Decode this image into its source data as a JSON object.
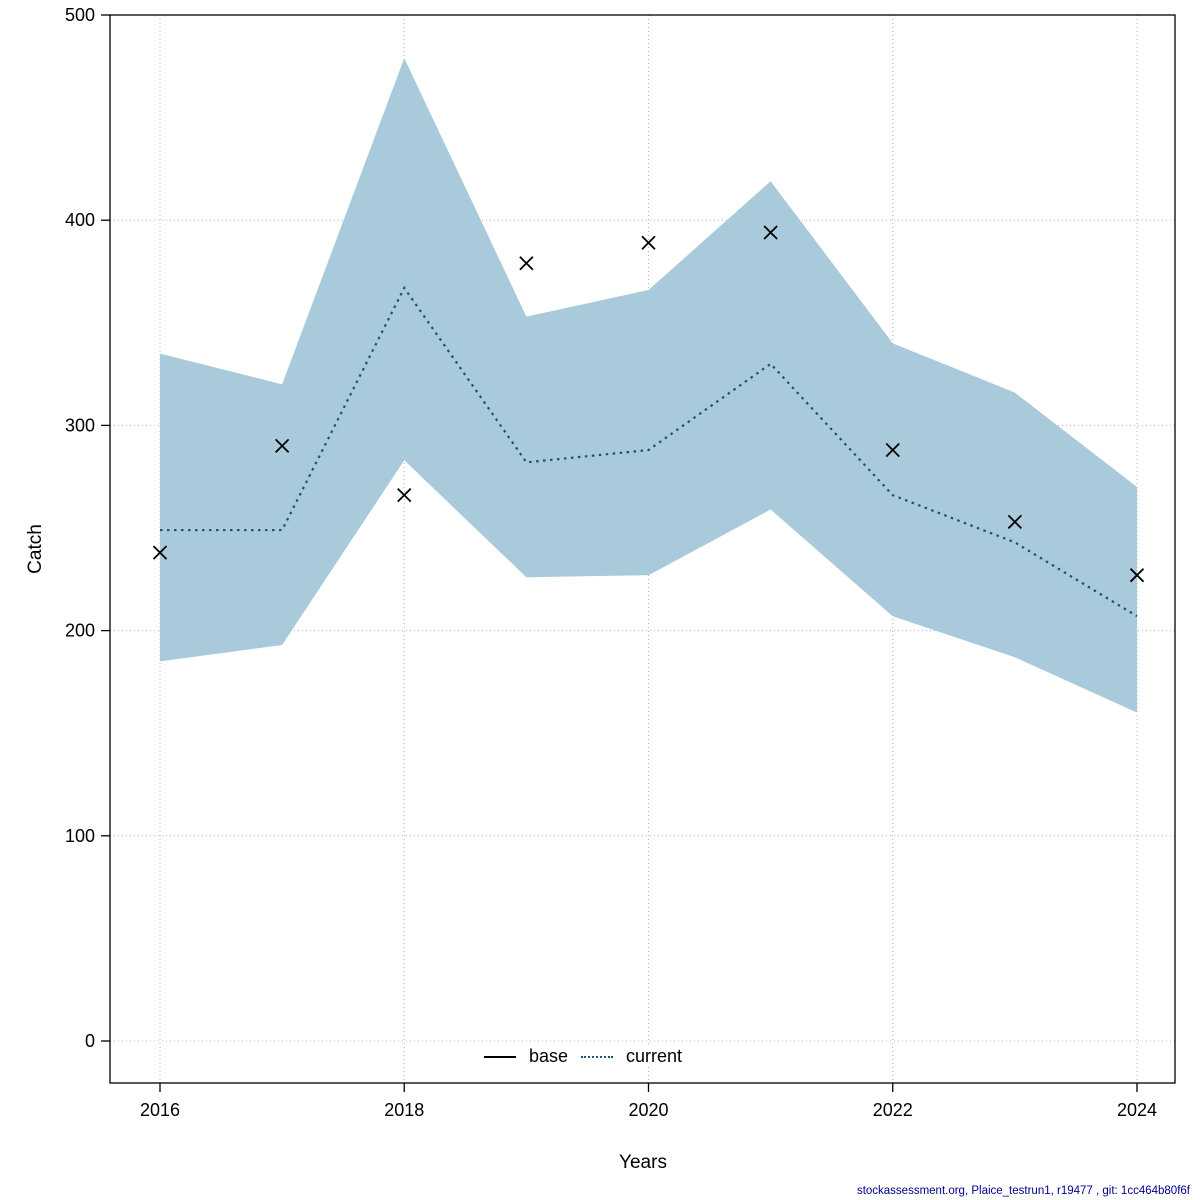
{
  "footer": {
    "text": "stockassessment.org, Plaice_testrun1, r19477 , git: 1cc464b80f6f"
  },
  "chart_data": {
    "type": "line",
    "title": "",
    "xlabel": "Years",
    "ylabel": "Catch",
    "xlim": [
      2016,
      2024
    ],
    "ylim": [
      0,
      500
    ],
    "x_ticks": [
      2016,
      2018,
      2020,
      2022,
      2024
    ],
    "y_ticks": [
      0,
      100,
      200,
      300,
      400,
      500
    ],
    "grid": true,
    "years": [
      2016,
      2017,
      2018,
      2019,
      2020,
      2021,
      2022,
      2023,
      2024
    ],
    "series": [
      {
        "name": "current",
        "type": "line",
        "style": "dotted",
        "color": "#1b5372",
        "values": [
          249,
          249,
          367,
          282,
          288,
          330,
          266,
          243,
          207
        ]
      },
      {
        "name": "observed",
        "type": "scatter",
        "marker": "x",
        "color": "#000000",
        "values": [
          238,
          290,
          266,
          379,
          389,
          394,
          288,
          253,
          227
        ]
      }
    ],
    "band": {
      "name": "current-confidence-interval",
      "color": "#a9cadb",
      "upper": [
        335,
        320,
        479,
        353,
        366,
        419,
        340,
        316,
        270
      ],
      "lower": [
        185,
        193,
        283,
        226,
        227,
        259,
        207,
        187,
        160
      ]
    },
    "legend": {
      "position": "bottom-center",
      "entries": [
        {
          "label": "base",
          "style": "solid",
          "color": "#000000"
        },
        {
          "label": "current",
          "style": "dotted",
          "color": "#1b5372"
        }
      ]
    }
  }
}
